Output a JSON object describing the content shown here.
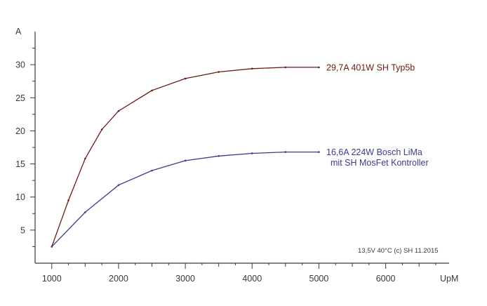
{
  "chart_data": {
    "type": "line",
    "title": "",
    "xlabel": "UpM",
    "ylabel": "A",
    "xlim": [
      750,
      6950
    ],
    "ylim": [
      0,
      35
    ],
    "xticks": [
      1000,
      2000,
      3000,
      4000,
      5000,
      6000
    ],
    "yticks": [
      5,
      10,
      15,
      20,
      25,
      30
    ],
    "grid": false,
    "series": [
      {
        "color": "#6b1c14",
        "label_lines": [
          "29,7A  401W  SH Typ5b"
        ],
        "x": [
          1000,
          1250,
          1500,
          1750,
          2000,
          2500,
          3000,
          3500,
          4000,
          4500,
          5000
        ],
        "y": [
          2.5,
          9.5,
          15.8,
          20.2,
          23.0,
          26.1,
          27.9,
          28.9,
          29.4,
          29.6,
          29.6
        ]
      },
      {
        "color": "#3a3b8c",
        "label_lines": [
          "16,6A  224W  Bosch LiMa",
          "mit SH MosFet Kontroller"
        ],
        "x": [
          1000,
          1500,
          2000,
          2500,
          3000,
          3500,
          4000,
          4500,
          5000
        ],
        "y": [
          2.5,
          7.7,
          11.8,
          14.0,
          15.5,
          16.2,
          16.6,
          16.8,
          16.8
        ]
      }
    ],
    "annotation": "13,5V   40°C   (c) SH 11.2015"
  }
}
